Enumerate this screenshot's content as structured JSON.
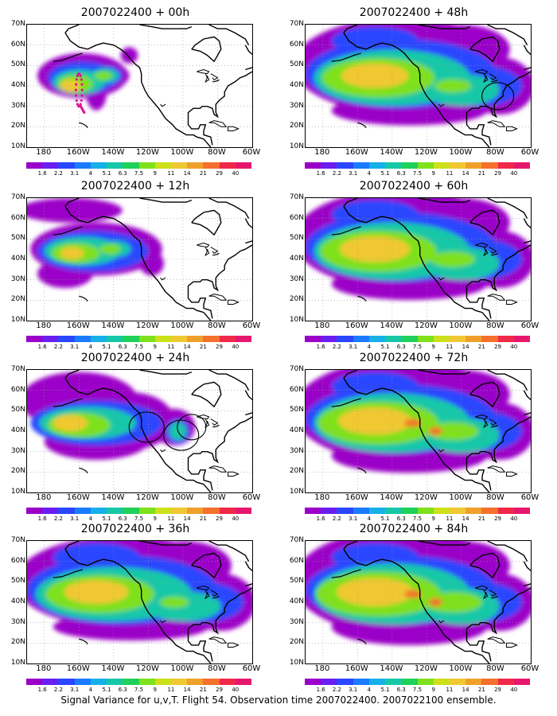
{
  "footer": "Signal Variance for u,v,T. Flight 54. Observation time 2007022400. 2007022100 ensemble.",
  "lat_labels": [
    "70N",
    "60N",
    "50N",
    "40N",
    "30N",
    "20N",
    "10N"
  ],
  "lon_labels": [
    "180",
    "160W",
    "140W",
    "120W",
    "100W",
    "80W",
    "60W"
  ],
  "colorbar": {
    "labels": [
      "1.6",
      "2.2",
      "3.1",
      "4",
      "5.1",
      "6.3",
      "7.5",
      "9",
      "11",
      "14",
      "21",
      "29",
      "40"
    ],
    "colors": [
      "#9b00c8",
      "#6a1ef0",
      "#2a46ff",
      "#1a7cff",
      "#17b0e8",
      "#17c8a8",
      "#1fd05a",
      "#7ee11c",
      "#cde01a",
      "#f0c832",
      "#f0a02a",
      "#f4702c",
      "#f0284a",
      "#e6186e"
    ]
  },
  "panels": [
    {
      "title": "2007022400 + 00h",
      "lead_hours": 0
    },
    {
      "title": "2007022400 + 48h",
      "lead_hours": 48
    },
    {
      "title": "2007022400 + 12h",
      "lead_hours": 12
    },
    {
      "title": "2007022400 + 60h",
      "lead_hours": 60
    },
    {
      "title": "2007022400 + 24h",
      "lead_hours": 24
    },
    {
      "title": "2007022400 + 72h",
      "lead_hours": 72
    },
    {
      "title": "2007022400 + 36h",
      "lead_hours": 36
    },
    {
      "title": "2007022400 + 84h",
      "lead_hours": 84
    }
  ]
}
